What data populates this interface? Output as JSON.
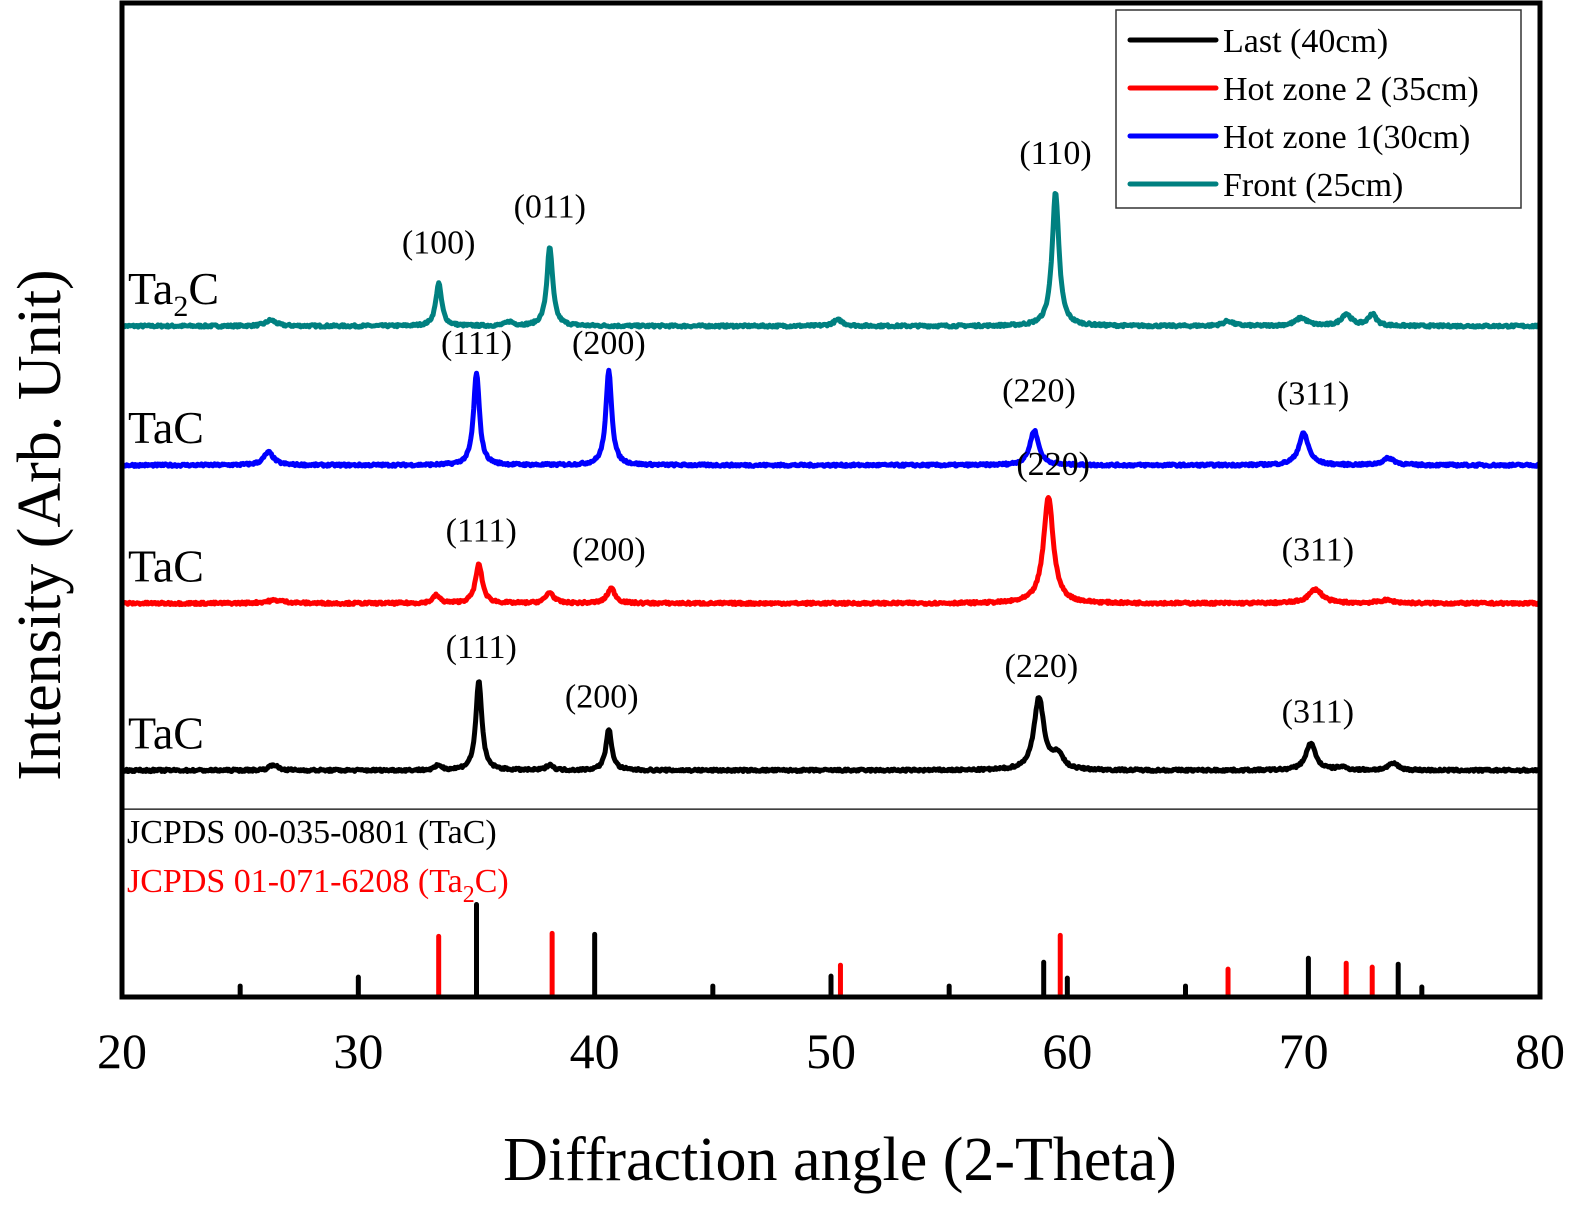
{
  "chart_data": {
    "type": "line",
    "title": "",
    "xlabel": "Diffraction angle (2-Theta)",
    "ylabel": "Intensity (Arb. Unit)",
    "xlim": [
      20,
      80
    ],
    "ylim": [
      0,
      100
    ],
    "x_ticks": [
      20,
      30,
      40,
      50,
      60,
      70,
      80
    ],
    "y_ticks": [],
    "grid": false,
    "legend_position": "top-right",
    "legend": [
      {
        "label": "Last (40cm)",
        "color": "#000000"
      },
      {
        "label": "Hot zone 2 (35cm)",
        "color": "#ff0000"
      },
      {
        "label": "Hot zone 1(30cm)",
        "color": "#0000ff"
      },
      {
        "label": "Front (25cm)",
        "color": "#008080"
      }
    ],
    "series": [
      {
        "name": "Front (25cm)",
        "color": "#008080",
        "phase_label": "Ta",
        "phase_sub": "2",
        "phase_suffix": "C",
        "baseline": 67.5,
        "peaks": [
          {
            "x": 26.3,
            "h": 0.6,
            "w": 0.5
          },
          {
            "x": 33.4,
            "h": 4.3,
            "w": 0.3
          },
          {
            "x": 36.4,
            "h": 0.4,
            "w": 0.4
          },
          {
            "x": 38.1,
            "h": 7.9,
            "w": 0.3
          },
          {
            "x": 50.3,
            "h": 0.6,
            "w": 0.5
          },
          {
            "x": 59.5,
            "h": 13.4,
            "w": 0.35
          },
          {
            "x": 66.8,
            "h": 0.5,
            "w": 0.5
          },
          {
            "x": 69.9,
            "h": 0.8,
            "w": 0.6
          },
          {
            "x": 71.8,
            "h": 1.2,
            "w": 0.5
          },
          {
            "x": 72.9,
            "h": 1.2,
            "w": 0.4
          }
        ],
        "annotations": [
          {
            "x": 33.4,
            "y": 74.8,
            "text": "(100)"
          },
          {
            "x": 38.1,
            "y": 78.4,
            "text": "(011)"
          },
          {
            "x": 59.5,
            "y": 83.8,
            "text": "(110)"
          }
        ]
      },
      {
        "name": "Hot zone 1(30cm)",
        "color": "#0000ff",
        "phase_label": "TaC",
        "phase_sub": "",
        "phase_suffix": "",
        "baseline": 53.5,
        "peaks": [
          {
            "x": 26.2,
            "h": 1.3,
            "w": 0.5
          },
          {
            "x": 35.0,
            "h": 9.3,
            "w": 0.3
          },
          {
            "x": 40.6,
            "h": 9.5,
            "w": 0.3
          },
          {
            "x": 58.6,
            "h": 3.5,
            "w": 0.45
          },
          {
            "x": 70.0,
            "h": 3.2,
            "w": 0.5
          },
          {
            "x": 73.6,
            "h": 0.7,
            "w": 0.6
          }
        ],
        "annotations": [
          {
            "x": 35.0,
            "y": 64.7,
            "text": "(111)"
          },
          {
            "x": 40.6,
            "y": 64.7,
            "text": "(200)"
          },
          {
            "x": 58.8,
            "y": 59.9,
            "text": "(220)"
          },
          {
            "x": 70.4,
            "y": 59.6,
            "text": "(311)"
          }
        ]
      },
      {
        "name": "Hot zone 2 (35cm)",
        "color": "#ff0000",
        "phase_label": "TaC",
        "phase_sub": "",
        "phase_suffix": "",
        "baseline": 39.6,
        "peaks": [
          {
            "x": 26.5,
            "h": 0.3,
            "w": 1.0
          },
          {
            "x": 33.3,
            "h": 0.8,
            "w": 0.35
          },
          {
            "x": 35.1,
            "h": 3.9,
            "w": 0.35
          },
          {
            "x": 38.1,
            "h": 1.1,
            "w": 0.4
          },
          {
            "x": 40.7,
            "h": 1.5,
            "w": 0.4
          },
          {
            "x": 59.2,
            "h": 10.7,
            "w": 0.5
          },
          {
            "x": 70.5,
            "h": 1.4,
            "w": 0.7
          },
          {
            "x": 73.5,
            "h": 0.3,
            "w": 0.8
          }
        ],
        "annotations": [
          {
            "x": 35.2,
            "y": 45.8,
            "text": "(111)"
          },
          {
            "x": 40.6,
            "y": 43.9,
            "text": "(200)"
          },
          {
            "x": 59.4,
            "y": 52.5,
            "text": "(220)"
          },
          {
            "x": 70.6,
            "y": 43.9,
            "text": "(311)"
          }
        ]
      },
      {
        "name": "Last (40cm)",
        "color": "#000000",
        "phase_label": "TaC",
        "phase_sub": "",
        "phase_suffix": "",
        "baseline": 22.8,
        "peaks": [
          {
            "x": 26.4,
            "h": 0.6,
            "w": 0.4
          },
          {
            "x": 33.4,
            "h": 0.5,
            "w": 0.3
          },
          {
            "x": 35.1,
            "h": 9.1,
            "w": 0.3
          },
          {
            "x": 38.1,
            "h": 0.6,
            "w": 0.3
          },
          {
            "x": 40.6,
            "h": 4.1,
            "w": 0.3
          },
          {
            "x": 58.8,
            "h": 7.3,
            "w": 0.5
          },
          {
            "x": 59.6,
            "h": 1.5,
            "w": 0.5
          },
          {
            "x": 70.3,
            "h": 2.7,
            "w": 0.5
          },
          {
            "x": 71.6,
            "h": 0.3,
            "w": 0.5
          },
          {
            "x": 73.8,
            "h": 0.7,
            "w": 0.5
          }
        ],
        "annotations": [
          {
            "x": 35.2,
            "y": 34.1,
            "text": "(111)"
          },
          {
            "x": 40.3,
            "y": 29.1,
            "text": "(200)"
          },
          {
            "x": 58.9,
            "y": 32.2,
            "text": "(220)"
          },
          {
            "x": 70.6,
            "y": 27.6,
            "text": "(311)"
          }
        ]
      }
    ],
    "reference_patterns": [
      {
        "name": "JCPDS 00-035-0801 (TaC)",
        "label_main": "JCPDS 00-035-0801 (TaC)",
        "color": "#000000",
        "sticks": [
          {
            "x": 25.0,
            "h": 1.1
          },
          {
            "x": 30.0,
            "h": 2.0
          },
          {
            "x": 35.0,
            "h": 9.3
          },
          {
            "x": 40.0,
            "h": 6.3
          },
          {
            "x": 45.0,
            "h": 1.1
          },
          {
            "x": 50.0,
            "h": 2.1
          },
          {
            "x": 55.0,
            "h": 1.1
          },
          {
            "x": 59.0,
            "h": 3.5
          },
          {
            "x": 60.0,
            "h": 1.9
          },
          {
            "x": 65.0,
            "h": 1.1
          },
          {
            "x": 70.2,
            "h": 3.9
          },
          {
            "x": 74.0,
            "h": 3.3
          },
          {
            "x": 75.0,
            "h": 1.0
          }
        ]
      },
      {
        "name": "JCPDS 01-071-6208 (Ta2C)",
        "label_main": "JCPDS 01-071-6208 (Ta",
        "label_sub": "2",
        "label_suffix": "C)",
        "color": "#ff0000",
        "sticks": [
          {
            "x": 33.4,
            "h": 6.1
          },
          {
            "x": 38.2,
            "h": 6.4
          },
          {
            "x": 50.4,
            "h": 3.2
          },
          {
            "x": 59.7,
            "h": 6.2
          },
          {
            "x": 66.8,
            "h": 2.8
          },
          {
            "x": 71.8,
            "h": 3.4
          },
          {
            "x": 72.9,
            "h": 3.0
          }
        ]
      }
    ],
    "divider_y": 18.9
  }
}
